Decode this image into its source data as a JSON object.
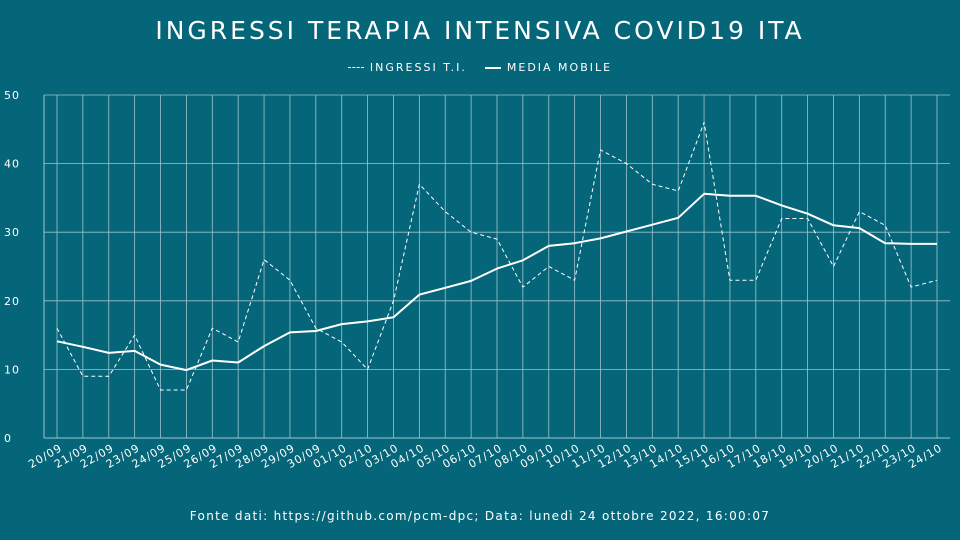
{
  "header": {
    "title": "INGRESSI TERAPIA INTENSIVA COVID19 ITA"
  },
  "legend": {
    "daily_label": "INGRESSI T.I.",
    "avg_label": "MEDIA MOBILE"
  },
  "footer": {
    "source": "Fonte dati: https://github.com/pcm-dpc; Data: lunedì 24 ottobre 2022, 16:00:07"
  },
  "colors": {
    "background": "#05667a",
    "foreground": "#ffffff",
    "grid": "#9fc4cd"
  },
  "chart_data": {
    "type": "line",
    "title": "INGRESSI TERAPIA INTENSIVA COVID19 ITA",
    "xlabel": "",
    "ylabel": "",
    "ylim": [
      0,
      50
    ],
    "yticks": [
      0,
      10,
      20,
      30,
      40,
      50
    ],
    "grid": true,
    "legend_position": "top-center",
    "categories": [
      "20/09",
      "21/09",
      "22/09",
      "23/09",
      "24/09",
      "25/09",
      "26/09",
      "27/09",
      "28/09",
      "29/09",
      "30/09",
      "01/10",
      "02/10",
      "03/10",
      "04/10",
      "05/10",
      "06/10",
      "07/10",
      "08/10",
      "09/10",
      "10/10",
      "11/10",
      "12/10",
      "13/10",
      "14/10",
      "15/10",
      "16/10",
      "17/10",
      "18/10",
      "19/10",
      "20/10",
      "21/10",
      "22/10",
      "23/10",
      "24/10"
    ],
    "series": [
      {
        "name": "INGRESSI T.I.",
        "style": "dashed",
        "values": [
          16,
          9,
          9,
          15,
          7,
          7,
          16,
          14,
          26,
          23,
          16,
          14,
          10,
          20,
          37,
          33,
          30,
          29,
          22,
          25,
          23,
          42,
          40,
          37,
          36,
          46,
          23,
          23,
          32,
          32,
          25,
          33,
          31,
          22,
          23
        ]
      },
      {
        "name": "MEDIA MOBILE",
        "style": "solid",
        "values": [
          14.1,
          13.3,
          12.4,
          12.7,
          10.7,
          9.9,
          11.3,
          11.0,
          13.4,
          15.4,
          15.6,
          16.6,
          17.0,
          17.6,
          20.9,
          21.9,
          22.9,
          24.7,
          25.9,
          28.0,
          28.4,
          29.1,
          30.1,
          31.1,
          32.1,
          35.6,
          35.3,
          35.3,
          33.9,
          32.7,
          31.0,
          30.6,
          28.4,
          28.3,
          28.3
        ]
      }
    ]
  }
}
